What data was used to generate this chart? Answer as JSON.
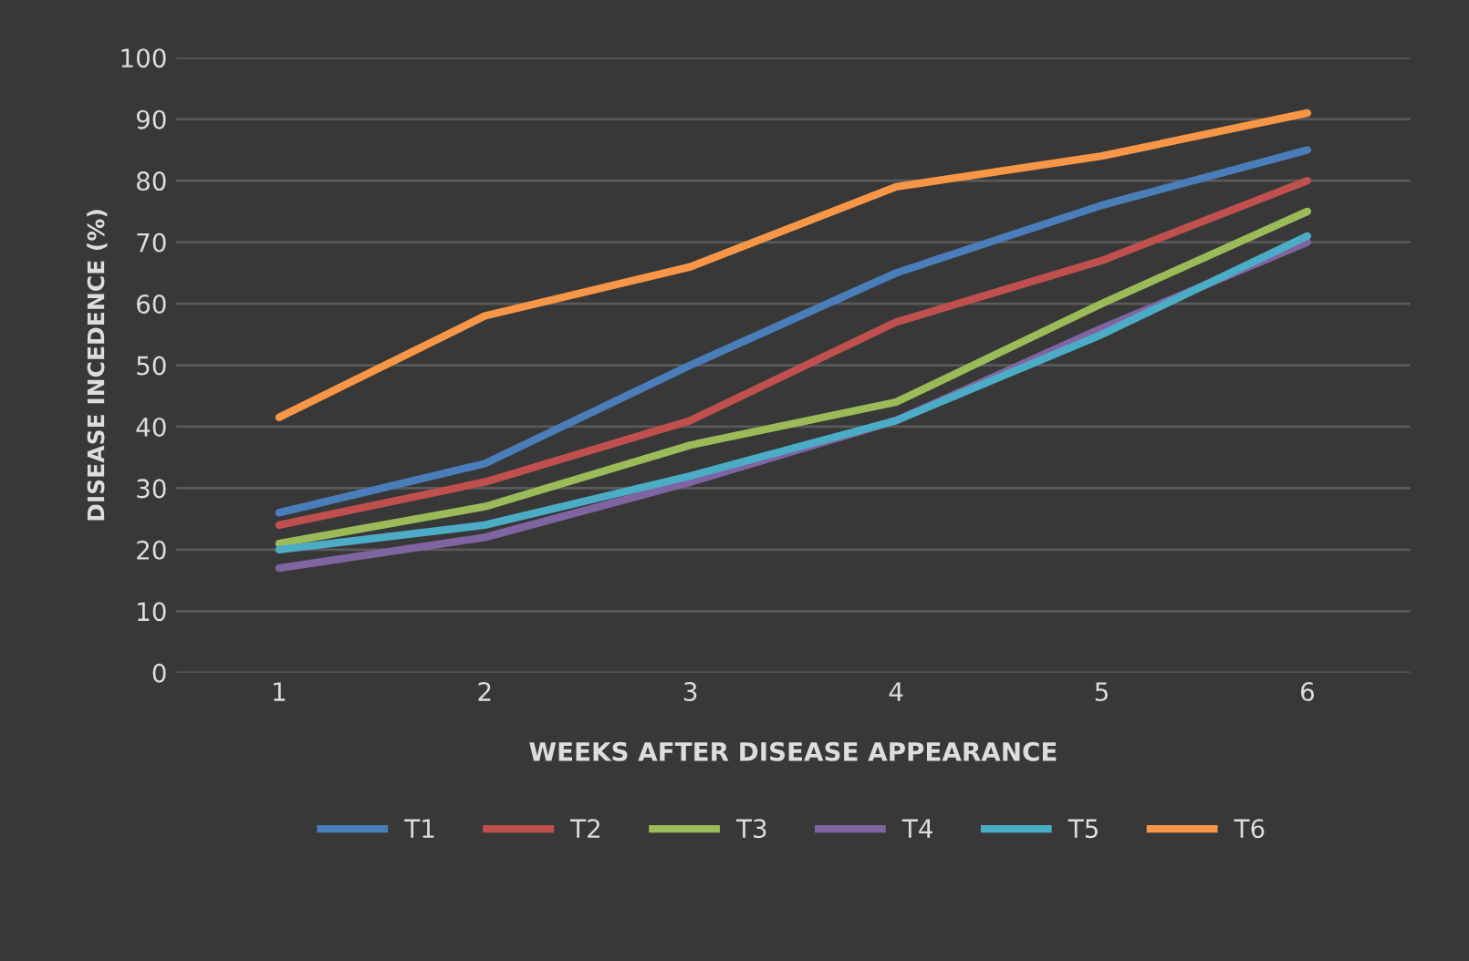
{
  "chart_data": {
    "type": "line",
    "xlabel": "WEEKS AFTER DISEASE APPEARANCE",
    "ylabel": "DISEASE INCEDENCE (%)",
    "categories": [
      "1",
      "2",
      "3",
      "4",
      "5",
      "6"
    ],
    "series": [
      {
        "name": "T1",
        "color": "#4a7ebb",
        "values": [
          26,
          34,
          50,
          65,
          76,
          85
        ]
      },
      {
        "name": "T2",
        "color": "#c0504d",
        "values": [
          24,
          31,
          41,
          57,
          67,
          80
        ]
      },
      {
        "name": "T3",
        "color": "#9bbb59",
        "values": [
          21,
          27,
          37,
          44,
          60,
          75
        ]
      },
      {
        "name": "T4",
        "color": "#8064a2",
        "values": [
          17,
          22,
          31,
          41,
          56,
          70
        ]
      },
      {
        "name": "T5",
        "color": "#4bacc6",
        "values": [
          20,
          24,
          32,
          41,
          55,
          71
        ]
      },
      {
        "name": "T6",
        "color": "#f79646",
        "values": [
          41.5,
          58,
          66,
          79,
          84,
          91
        ]
      }
    ],
    "ylim": [
      0,
      100
    ],
    "yticks": [
      0,
      10,
      20,
      30,
      40,
      50,
      60,
      70,
      80,
      90,
      100
    ],
    "grid": "y",
    "legend": "bottom",
    "marker": "none",
    "line_style": "solid"
  }
}
